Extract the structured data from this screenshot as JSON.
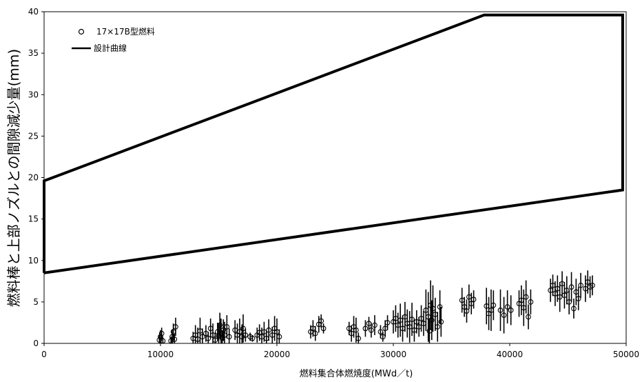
{
  "chart_data": {
    "type": "scatter",
    "xlabel": "燃料集合体燃焼度(MWd／t)",
    "ylabel": "燃料棒と上部ノズルとの間隙減少量(mm)",
    "xlim": [
      0,
      50000
    ],
    "ylim": [
      0,
      40
    ],
    "x_ticks": [
      0,
      10000,
      20000,
      30000,
      40000,
      50000
    ],
    "y_ticks": [
      0,
      5,
      10,
      15,
      20,
      25,
      30,
      35,
      40
    ],
    "x_tick_labels": [
      "0",
      "10000",
      "20000",
      "30000",
      "40000",
      "50000"
    ],
    "y_tick_labels": [
      "0",
      "5",
      "10",
      "15",
      "20",
      "25",
      "30",
      "35",
      "40"
    ],
    "grid": false,
    "legend_position": "top-left",
    "legend": [
      {
        "label": "17×17B型燃料",
        "marker": "circle-open"
      },
      {
        "label": "設計曲線",
        "marker": "line"
      }
    ],
    "design_curve": {
      "name": "設計曲線",
      "x": [
        0,
        0,
        37800,
        49700,
        49700,
        0
      ],
      "y": [
        8.5,
        19.6,
        39.6,
        39.6,
        18.5,
        8.5
      ]
    },
    "measured": {
      "name": "17×17B型燃料",
      "points": [
        [
          9900,
          0.4,
          0.6
        ],
        [
          10000,
          0.8,
          0.8
        ],
        [
          10100,
          1.2,
          0.7
        ],
        [
          10200,
          0.3,
          0.4
        ],
        [
          10900,
          0.3,
          0.5
        ],
        [
          11000,
          0.8,
          0.9
        ],
        [
          11100,
          1.4,
          1.0
        ],
        [
          11200,
          0.5,
          0.6
        ],
        [
          11300,
          2.0,
          1.1
        ],
        [
          12800,
          0.6,
          0.8
        ],
        [
          13000,
          1.0,
          1.2
        ],
        [
          13200,
          0.5,
          1.4
        ],
        [
          13400,
          1.5,
          1.6
        ],
        [
          13600,
          0.8,
          1.0
        ],
        [
          13900,
          1.2,
          1.0
        ],
        [
          14100,
          0.6,
          0.8
        ],
        [
          14300,
          1.8,
          1.2
        ],
        [
          14500,
          1.0,
          1.4
        ],
        [
          14700,
          0.4,
          0.9
        ],
        [
          14900,
          1.4,
          1.1
        ],
        [
          15000,
          0.9,
          1.5
        ],
        [
          15100,
          2.2,
          1.5
        ],
        [
          15200,
          1.2,
          1.8
        ],
        [
          15300,
          0.6,
          1.0
        ],
        [
          15400,
          1.6,
          1.3
        ],
        [
          15500,
          1.0,
          1.6
        ],
        [
          15700,
          2.0,
          1.4
        ],
        [
          15900,
          0.8,
          1.0
        ],
        [
          16400,
          1.6,
          1.2
        ],
        [
          16600,
          1.0,
          1.4
        ],
        [
          16800,
          1.4,
          1.6
        ],
        [
          17000,
          0.8,
          1.5
        ],
        [
          17100,
          1.8,
          1.7
        ],
        [
          17300,
          1.0,
          0.8
        ],
        [
          17700,
          0.8,
          0.5
        ],
        [
          17900,
          0.6,
          0.4
        ],
        [
          18300,
          1.0,
          0.9
        ],
        [
          18500,
          1.3,
          1.0
        ],
        [
          18700,
          0.8,
          1.1
        ],
        [
          18900,
          1.4,
          1.2
        ],
        [
          19100,
          0.6,
          0.8
        ],
        [
          19300,
          1.6,
          1.3
        ],
        [
          19600,
          1.0,
          1.0
        ],
        [
          19800,
          1.8,
          1.5
        ],
        [
          20000,
          1.4,
          1.6
        ],
        [
          20200,
          0.8,
          0.9
        ],
        [
          22900,
          1.4,
          0.8
        ],
        [
          23100,
          1.8,
          1.0
        ],
        [
          23300,
          1.2,
          0.9
        ],
        [
          23600,
          2.3,
          1.0
        ],
        [
          23800,
          2.7,
          0.8
        ],
        [
          24000,
          1.8,
          0.6
        ],
        [
          26200,
          1.8,
          0.8
        ],
        [
          26400,
          1.2,
          1.0
        ],
        [
          26600,
          2.0,
          1.3
        ],
        [
          26800,
          1.6,
          1.5
        ],
        [
          27000,
          0.6,
          0.7
        ],
        [
          27600,
          1.8,
          1.0
        ],
        [
          27900,
          2.4,
          0.8
        ],
        [
          28100,
          1.6,
          0.9
        ],
        [
          28400,
          2.2,
          1.2
        ],
        [
          28900,
          1.4,
          0.8
        ],
        [
          29100,
          0.8,
          0.6
        ],
        [
          29300,
          1.8,
          1.0
        ],
        [
          29500,
          2.5,
          0.9
        ],
        [
          30000,
          2.6,
          1.4
        ],
        [
          30200,
          3.0,
          1.6
        ],
        [
          30400,
          2.2,
          1.5
        ],
        [
          30600,
          2.8,
          2.0
        ],
        [
          30800,
          1.8,
          1.6
        ],
        [
          31000,
          3.2,
          1.8
        ],
        [
          31200,
          2.4,
          1.7
        ],
        [
          31400,
          2.0,
          1.9
        ],
        [
          31600,
          2.9,
          2.0
        ],
        [
          31800,
          1.6,
          1.4
        ],
        [
          32000,
          2.6,
          1.4
        ],
        [
          32200,
          2.0,
          1.2
        ],
        [
          32400,
          3.0,
          1.6
        ],
        [
          32600,
          2.4,
          1.5
        ],
        [
          32800,
          4.0,
          2.5
        ],
        [
          33000,
          3.2,
          3.0
        ],
        [
          33100,
          1.5,
          1.5
        ],
        [
          33200,
          4.6,
          3.0
        ],
        [
          33300,
          2.8,
          2.4
        ],
        [
          33400,
          4.2,
          2.8
        ],
        [
          33600,
          3.5,
          2.0
        ],
        [
          33800,
          2.0,
          1.8
        ],
        [
          34000,
          4.4,
          2.0
        ],
        [
          34100,
          2.6,
          1.8
        ],
        [
          35900,
          5.2,
          1.5
        ],
        [
          36100,
          4.4,
          1.2
        ],
        [
          36300,
          3.9,
          1.4
        ],
        [
          36500,
          5.6,
          1.5
        ],
        [
          36700,
          4.8,
          1.3
        ],
        [
          36900,
          5.3,
          1.1
        ],
        [
          38000,
          4.5,
          2.2
        ],
        [
          38200,
          3.6,
          2.0
        ],
        [
          38400,
          4.0,
          2.5
        ],
        [
          38600,
          4.6,
          1.8
        ],
        [
          39200,
          4.0,
          2.5
        ],
        [
          39500,
          3.4,
          2.2
        ],
        [
          39800,
          4.4,
          2.0
        ],
        [
          40100,
          4.0,
          1.8
        ],
        [
          40800,
          4.8,
          1.6
        ],
        [
          41000,
          5.2,
          1.8
        ],
        [
          41200,
          4.3,
          2.2
        ],
        [
          41400,
          5.6,
          2.0
        ],
        [
          41600,
          3.2,
          1.5
        ],
        [
          41800,
          5.0,
          1.5
        ],
        [
          43500,
          6.4,
          1.4
        ],
        [
          43700,
          7.0,
          1.3
        ],
        [
          43900,
          6.0,
          1.5
        ],
        [
          44100,
          6.6,
          1.6
        ],
        [
          44300,
          5.6,
          1.8
        ],
        [
          44500,
          7.2,
          1.5
        ],
        [
          44700,
          5.8,
          1.6
        ],
        [
          44900,
          6.4,
          1.7
        ],
        [
          45100,
          5.0,
          1.5
        ],
        [
          45300,
          6.8,
          1.8
        ],
        [
          45500,
          4.2,
          1.2
        ],
        [
          45700,
          6.2,
          1.6
        ],
        [
          45900,
          5.4,
          1.4
        ],
        [
          46100,
          7.0,
          1.5
        ],
        [
          46500,
          6.6,
          1.6
        ],
        [
          46700,
          7.4,
          1.4
        ],
        [
          46900,
          6.8,
          1.3
        ],
        [
          47100,
          7.0,
          1.2
        ]
      ]
    }
  }
}
